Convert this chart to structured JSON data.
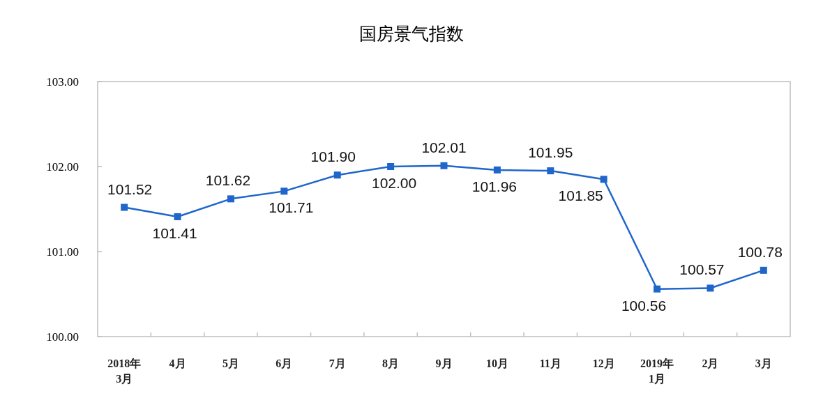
{
  "chart_data": {
    "type": "line",
    "title": "国房景气指数",
    "categories": [
      "2018年\n3月",
      "4月",
      "5月",
      "6月",
      "7月",
      "8月",
      "9月",
      "10月",
      "11月",
      "12月",
      "2019年\n1月",
      "2月",
      "3月"
    ],
    "series": [
      {
        "color": "#1f66cc",
        "values": [
          101.52,
          101.41,
          101.62,
          101.71,
          101.9,
          102.0,
          102.01,
          101.96,
          101.95,
          101.85,
          100.56,
          100.57,
          100.78
        ],
        "value_labels": [
          "101.52",
          "101.41",
          "101.62",
          "101.71",
          "101.90",
          "102.00",
          "102.01",
          "101.96",
          "101.95",
          "101.85",
          "100.56",
          "100.57",
          "100.78"
        ]
      }
    ],
    "ylim": [
      100,
      103
    ],
    "yticks": [
      {
        "value": 100,
        "label": "100.00"
      },
      {
        "value": 101,
        "label": "101.00"
      },
      {
        "value": 102,
        "label": "102.00"
      },
      {
        "value": 103,
        "label": "103.00"
      }
    ],
    "marker": "square",
    "line_style": "solid"
  }
}
